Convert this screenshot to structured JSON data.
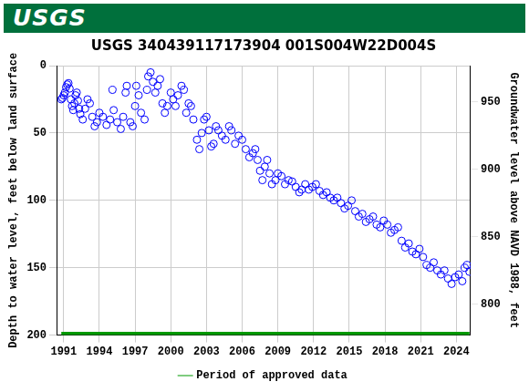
{
  "chart_data": {
    "type": "scatter",
    "header": "USGS",
    "title": "USGS 340439117173904 001S004W22D004S",
    "y_label": "Depth to water level, feet below land surface",
    "y2_label": "Groundwater level above NAVD 1988, feet",
    "xlim": [
      1990.4,
      2025.2
    ],
    "xticks": [
      1991,
      1994,
      1997,
      2000,
      2003,
      2006,
      2009,
      2012,
      2015,
      2018,
      2021,
      2024
    ],
    "ylim": [
      0,
      200
    ],
    "yticks": [
      0,
      50,
      100,
      150,
      200
    ],
    "y2lim": [
      777,
      977
    ],
    "y2ticks": [
      800,
      850,
      900,
      950
    ],
    "grid": true,
    "legend": "bottom",
    "series": [
      {
        "color": "#0000ff",
        "marker": "circle",
        "type": "scatter",
        "x": [
          1990.8,
          1990.9,
          1991.0,
          1991.1,
          1991.2,
          1991.3,
          1991.4,
          1991.5,
          1991.6,
          1991.7,
          1991.8,
          1991.9,
          1992.0,
          1992.1,
          1992.2,
          1992.3,
          1992.4,
          1992.6,
          1992.8,
          1993.0,
          1993.2,
          1993.4,
          1993.6,
          1993.8,
          1994.0,
          1994.3,
          1994.6,
          1994.9,
          1995.1,
          1995.2,
          1995.5,
          1995.8,
          1996.0,
          1996.2,
          1996.3,
          1996.6,
          1996.8,
          1997.0,
          1997.1,
          1997.3,
          1997.5,
          1997.8,
          1998.0,
          1998.1,
          1998.3,
          1998.5,
          1998.7,
          1998.9,
          1999.1,
          1999.3,
          1999.5,
          1999.7,
          2000.0,
          2000.2,
          2000.4,
          2000.6,
          2000.9,
          2001.1,
          2001.3,
          2001.5,
          2001.7,
          2001.9,
          2002.2,
          2002.4,
          2002.6,
          2002.8,
          2003.0,
          2003.2,
          2003.4,
          2003.6,
          2003.8,
          2004.0,
          2004.3,
          2004.6,
          2004.9,
          2005.1,
          2005.4,
          2005.7,
          2006.0,
          2006.3,
          2006.6,
          2006.9,
          2007.1,
          2007.3,
          2007.5,
          2007.7,
          2007.9,
          2008.1,
          2008.3,
          2008.5,
          2008.8,
          2009.0,
          2009.3,
          2009.6,
          2009.9,
          2010.2,
          2010.5,
          2010.8,
          2011.0,
          2011.3,
          2011.6,
          2011.9,
          2012.2,
          2012.5,
          2012.8,
          2013.1,
          2013.4,
          2013.7,
          2014.0,
          2014.3,
          2014.6,
          2014.9,
          2015.2,
          2015.5,
          2015.8,
          2016.1,
          2016.4,
          2016.7,
          2017.0,
          2017.3,
          2017.6,
          2017.9,
          2018.2,
          2018.5,
          2018.8,
          2019.1,
          2019.4,
          2019.7,
          2020.0,
          2020.3,
          2020.6,
          2020.9,
          2021.2,
          2021.5,
          2021.8,
          2022.1,
          2022.4,
          2022.7,
          2023.0,
          2023.3,
          2023.6,
          2023.9,
          2024.2,
          2024.5,
          2024.7,
          2024.9,
          2025.1
        ],
        "values": [
          25,
          24,
          22,
          20,
          16,
          14,
          13,
          17,
          25,
          30,
          33,
          28,
          22,
          20,
          26,
          32,
          36,
          40,
          32,
          25,
          28,
          38,
          45,
          42,
          35,
          38,
          44,
          40,
          18,
          33,
          42,
          47,
          38,
          20,
          15,
          42,
          45,
          30,
          15,
          22,
          35,
          40,
          18,
          8,
          5,
          12,
          20,
          15,
          10,
          28,
          35,
          30,
          20,
          25,
          30,
          22,
          15,
          18,
          35,
          28,
          30,
          40,
          55,
          62,
          50,
          40,
          38,
          48,
          60,
          58,
          45,
          48,
          52,
          55,
          45,
          48,
          58,
          52,
          55,
          62,
          68,
          65,
          62,
          70,
          78,
          85,
          75,
          70,
          80,
          88,
          85,
          80,
          82,
          88,
          85,
          86,
          90,
          94,
          92,
          88,
          92,
          90,
          88,
          93,
          96,
          94,
          98,
          100,
          98,
          102,
          106,
          104,
          100,
          108,
          112,
          110,
          116,
          114,
          112,
          118,
          120,
          115,
          118,
          124,
          122,
          120,
          130,
          135,
          132,
          138,
          140,
          136,
          142,
          148,
          150,
          146,
          152,
          155,
          152,
          158,
          162,
          157,
          155,
          160,
          150,
          148,
          153
        ]
      },
      {
        "name": "Period of approved data",
        "color": "#009900",
        "type": "line",
        "line_style": "solid",
        "x": [
          1990.8,
          2025.1
        ],
        "values": [
          199,
          199
        ]
      }
    ]
  }
}
